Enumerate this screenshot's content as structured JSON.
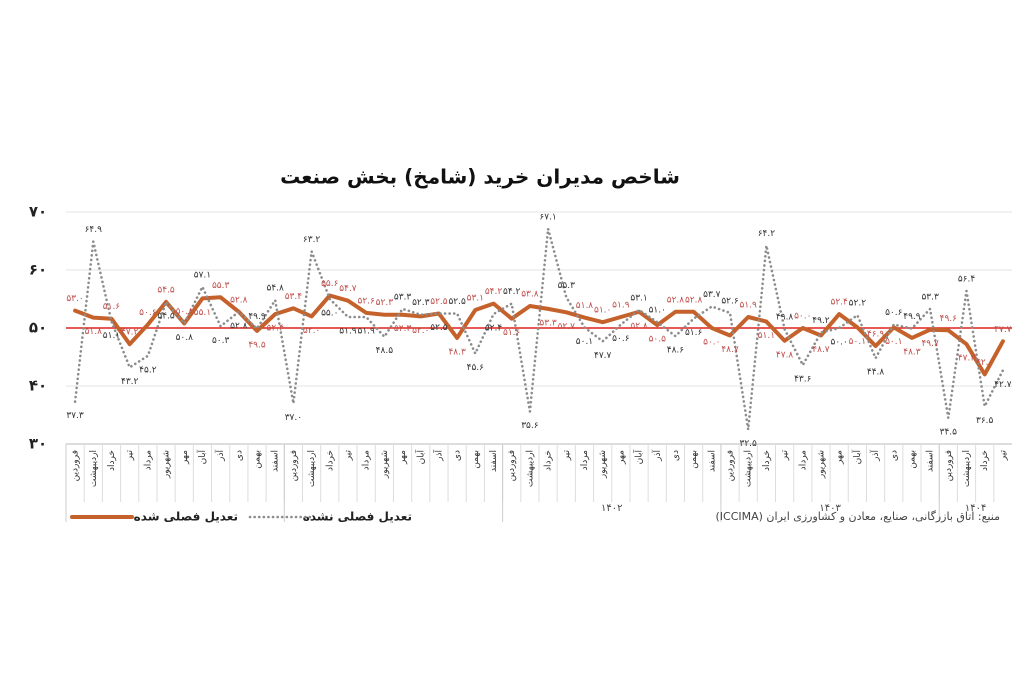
{
  "chart_data": {
    "type": "line",
    "title": "شاخص مدیران خرید (شامخ) بخش صنعت",
    "source": "منبع: اتاق بازرگانی، صنایع، معادن و کشاورزی ایران (ICCIMA)",
    "categories": [
      "فروردین",
      "اردیبهشت",
      "خرداد",
      "تیر",
      "مرداد",
      "شهریور",
      "مهر",
      "آبان",
      "آذر",
      "دی",
      "بهمن",
      "اسفند",
      "فروردین",
      "اردیبهشت",
      "خرداد",
      "تیر",
      "مرداد",
      "شهریور",
      "مهر",
      "آبان",
      "آذر",
      "دی",
      "بهمن",
      "اسفند",
      "فروردین",
      "اردیبهشت",
      "خرداد",
      "تیر",
      "مرداد",
      "شهریور",
      "مهر",
      "آبان",
      "آذر",
      "دی",
      "بهمن",
      "اسفند",
      "فروردین",
      "اردیبهشت",
      "خرداد",
      "تیر",
      "مرداد",
      "شهریور",
      "مهر",
      "آبان",
      "آذر",
      "دی",
      "بهمن",
      "اسفند",
      "فروردین",
      "اردیبهشت",
      "خرداد",
      "تیر"
    ],
    "groups": [
      {
        "label": null,
        "count": 12
      },
      {
        "label": null,
        "count": 12
      },
      {
        "label": "۱۴۰۲",
        "count": 12
      },
      {
        "label": "۱۴۰۳",
        "count": 12
      },
      {
        "label": "۱۴۰۴",
        "count": 4
      }
    ],
    "series": [
      {
        "name": "تعدیل فصلی شده",
        "color": "#c5612b",
        "style": "solid",
        "values": [
          53.0,
          51.8,
          51.6,
          47.2,
          50.6,
          54.5,
          50.8,
          55.1,
          55.3,
          52.8,
          49.5,
          52.4,
          53.4,
          52.0,
          55.6,
          54.7,
          52.6,
          52.3,
          52.3,
          52.0,
          52.5,
          48.3,
          53.1,
          54.2,
          51.6,
          53.8,
          53.3,
          52.7,
          51.8,
          51.0,
          51.9,
          52.8,
          50.5,
          52.8,
          52.8,
          50.0,
          48.7,
          51.9,
          51.1,
          47.8,
          50.0,
          48.7,
          52.4,
          50.1,
          46.9,
          50.1,
          48.3,
          49.7,
          49.6,
          47.2,
          42.0,
          47.7
        ],
        "value_labels": [
          "۵۳.۰",
          "۵۱.۸",
          "۵۱.۶",
          "۴۷.۲",
          "۵۰.۶",
          "۵۴.۵",
          "۵۰.۸",
          "۵۵.۱",
          "۵۵.۳",
          "۵۲.۸",
          "۴۹.۵",
          "۵۲.۴",
          "۵۳.۴",
          "۵۲.۰",
          "۵۵.۶",
          "۵۴.۷",
          "۵۲.۶",
          "۵۲.۳",
          "۵۲.۳",
          "۵۲.۰",
          "۵۲.۵",
          "۴۸.۳",
          "۵۳.۱",
          "۵۴.۲",
          "۵۱.۶",
          "۵۳.۸",
          "۵۳.۳",
          "۵۲.۷",
          "۵۱.۸",
          "۵۱.۰",
          "۵۱.۹",
          "۵۲.۸",
          "۵۰.۵",
          "۵۲.۸",
          "۵۲.۸",
          "۵۰.۰",
          "۴۸.۷",
          "۵۱.۹",
          "۵۱.۱",
          "۴۷.۸",
          "۵۰.۰",
          "۴۸.۷",
          "۵۲.۴",
          "۵۰.۱",
          "۴۶.۹",
          "۵۰.۱",
          "۴۸.۳",
          "۴۹.۷",
          "۴۹.۶",
          "۴۷.۲",
          "۴۲.۰",
          "۴۷.۷"
        ]
      },
      {
        "name": "تعدیل فصلی نشده",
        "color": "#8c8c8c",
        "style": "dotted",
        "values": [
          37.3,
          64.9,
          51.1,
          43.2,
          45.2,
          54.5,
          50.8,
          57.1,
          50.3,
          52.8,
          49.9,
          54.8,
          37.0,
          63.2,
          55.0,
          51.9,
          51.9,
          48.5,
          53.3,
          52.3,
          52.5,
          52.5,
          45.6,
          52.4,
          54.2,
          35.6,
          67.1,
          55.3,
          50.1,
          47.7,
          50.6,
          53.1,
          51.0,
          48.6,
          51.6,
          53.7,
          52.6,
          32.5,
          64.2,
          49.8,
          43.6,
          49.2,
          50.0,
          52.2,
          44.8,
          50.6,
          49.9,
          53.3,
          34.5,
          56.4,
          36.5,
          42.7
        ],
        "value_labels": [
          "۳۷.۳",
          "۶۴.۹",
          "۵۱.۱",
          "۴۳.۲",
          "۴۵.۲",
          "۵۴.۵",
          "۵۰.۸",
          "۵۷.۱",
          "۵۰.۳",
          "۵۲.۸",
          "۴۹.۹",
          "۵۴.۸",
          "۳۷.۰",
          "۶۳.۲",
          "۵۵.۰",
          "۵۱.۹",
          "۵۱.۹",
          "۴۸.۵",
          "۵۳.۳",
          "۵۲.۳",
          "۵۲.۵",
          "۵۲.۵",
          "۴۵.۶",
          "۵۲.۴",
          "۵۴.۲",
          "۳۵.۶",
          "۶۷.۱",
          "۵۵.۳",
          "۵۰.۱",
          "۴۷.۷",
          "۵۰.۶",
          "۵۳.۱",
          "۵۱.۰",
          "۴۸.۶",
          "۵۱.۶",
          "۵۳.۷",
          "۵۲.۶",
          "۳۲.۵",
          "۶۴.۲",
          "۴۹.۸",
          "۴۳.۶",
          "۴۹.۲",
          "۵۰.۰",
          "۵۲.۲",
          "۴۴.۸",
          "۵۰.۶",
          "۴۹.۹",
          "۵۳.۳",
          "۳۴.۵",
          "۵۶.۴",
          "۳۶.۵",
          "۴۲.۷"
        ]
      }
    ],
    "ylim": [
      30,
      70
    ],
    "yticks": [
      {
        "value": 30,
        "label": "۳۰"
      },
      {
        "value": 40,
        "label": "۴۰"
      },
      {
        "value": 50,
        "label": "۵۰"
      },
      {
        "value": 60,
        "label": "۶۰"
      },
      {
        "value": 70,
        "label": "۷۰"
      }
    ],
    "reference_line": {
      "value": 50,
      "color": "#e0201b"
    },
    "grid": true
  }
}
